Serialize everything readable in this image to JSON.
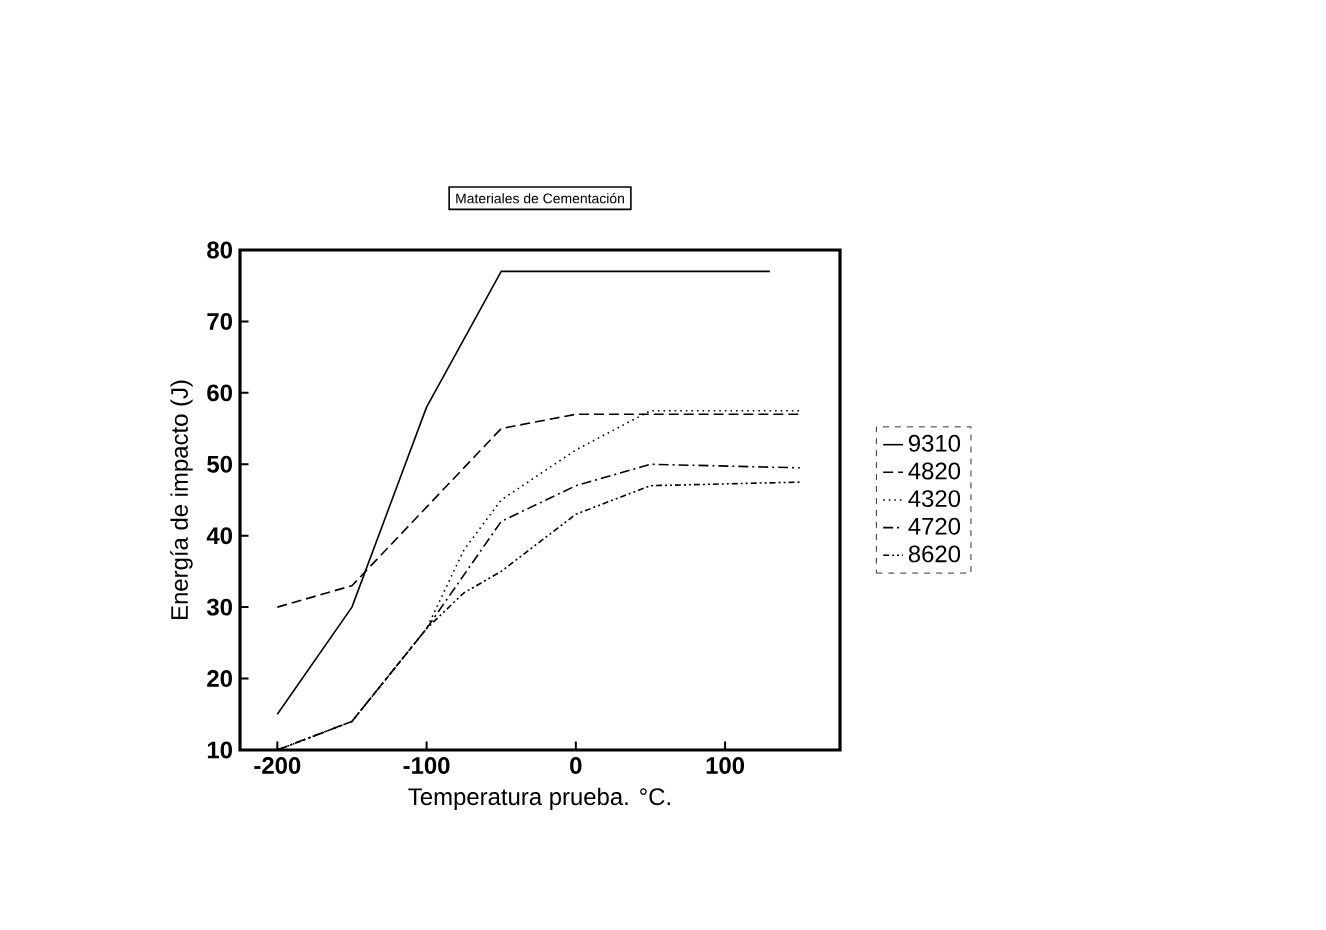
{
  "chart_data": {
    "type": "line",
    "title": "Materiales de Cementación",
    "xlabel": "Temperatura prueba. °C.",
    "ylabel": "Energía de impacto (J)",
    "xlim": [
      -225,
      177
    ],
    "xticks": [
      -200,
      -100,
      0,
      100
    ],
    "ylim": [
      10,
      80
    ],
    "yticks": [
      10,
      20,
      30,
      40,
      50,
      60,
      70,
      80
    ],
    "legend": "right",
    "grid": false,
    "marker": "none",
    "series": [
      {
        "name": "9310",
        "color": "#000000",
        "line_style": "solid",
        "x": [
          -200,
          -150,
          -100,
          -50,
          0,
          50,
          100,
          130
        ],
        "values": [
          15,
          30,
          58,
          77,
          77,
          77,
          77,
          77
        ]
      },
      {
        "name": "4820",
        "color": "#000000",
        "line_style": "dashed",
        "x": [
          -200,
          -150,
          -100,
          -50,
          0,
          50,
          150
        ],
        "values": [
          30,
          33,
          44,
          55,
          57,
          57,
          57
        ]
      },
      {
        "name": "4320",
        "color": "#000000",
        "line_style": "dotted",
        "x": [
          -200,
          -150,
          -100,
          -75,
          -50,
          0,
          50,
          150
        ],
        "values": [
          10,
          14,
          27,
          38,
          45,
          52,
          57.5,
          57.5
        ]
      },
      {
        "name": "4720",
        "color": "#000000",
        "line_style": "dashed",
        "x": [
          -200,
          -150,
          -100,
          -50,
          0,
          50,
          150
        ],
        "values": [
          10,
          14,
          27,
          42,
          47,
          50,
          49.5
        ]
      },
      {
        "name": "8620",
        "color": "#000000",
        "line_style": "dotted",
        "x": [
          -200,
          -150,
          -100,
          -75,
          -50,
          0,
          50,
          150
        ],
        "values": [
          10,
          14,
          27,
          32,
          35,
          43,
          47,
          47.5
        ]
      }
    ]
  }
}
